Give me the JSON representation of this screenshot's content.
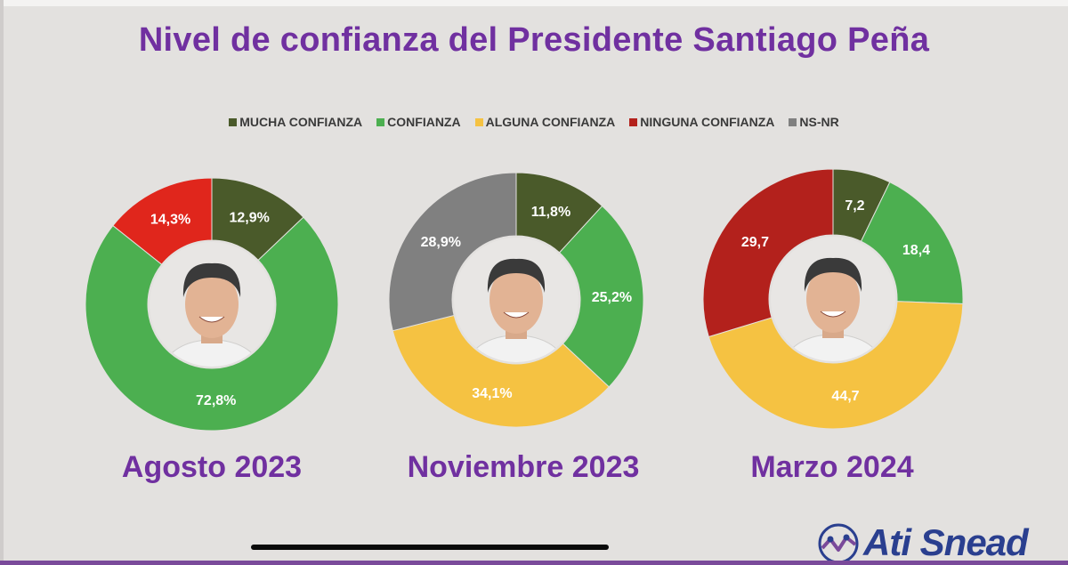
{
  "title": "Nivel de confianza del Presidente Santiago Peña",
  "legend": [
    {
      "label": "MUCHA CONFIANZA",
      "color": "#4a5a2a"
    },
    {
      "label": "CONFIANZA",
      "color": "#4caf50"
    },
    {
      "label": "ALGUNA CONFIANZA",
      "color": "#f5c242"
    },
    {
      "label": "NINGUNA CONFIANZA",
      "color": "#b3211c"
    },
    {
      "label": "NS-NR",
      "color": "#808080"
    }
  ],
  "chart_data": [
    {
      "type": "pie",
      "title": "Agosto 2023",
      "categories": [
        "MUCHA CONFIANZA",
        "CONFIANZA",
        "NINGUNA CONFIANZA"
      ],
      "values": [
        12.9,
        72.8,
        14.3
      ],
      "labels": [
        "12,9%",
        "72,8%",
        "14,3%"
      ],
      "colors": [
        "#4a5a2a",
        "#4caf50",
        "#e0261c"
      ]
    },
    {
      "type": "pie",
      "title": "Noviembre 2023",
      "categories": [
        "MUCHA CONFIANZA",
        "CONFIANZA",
        "ALGUNA CONFIANZA",
        "NS-NR"
      ],
      "values": [
        11.8,
        25.2,
        34.1,
        28.9
      ],
      "labels": [
        "11,8%",
        "25,2%",
        "34,1%",
        "28,9%"
      ],
      "colors": [
        "#4a5a2a",
        "#4caf50",
        "#f5c242",
        "#808080"
      ]
    },
    {
      "type": "pie",
      "title": "Marzo 2024",
      "categories": [
        "MUCHA CONFIANZA",
        "CONFIANZA",
        "ALGUNA CONFIANZA",
        "NINGUNA CONFIANZA"
      ],
      "values": [
        7.2,
        18.4,
        44.7,
        29.7
      ],
      "labels": [
        "7,2",
        "18,4",
        "44,7",
        "29,7"
      ],
      "colors": [
        "#4a5a2a",
        "#4caf50",
        "#f5c242",
        "#b3211c"
      ]
    }
  ],
  "brand": {
    "name": "Ati Snead",
    "color": "#2a3f8f"
  }
}
